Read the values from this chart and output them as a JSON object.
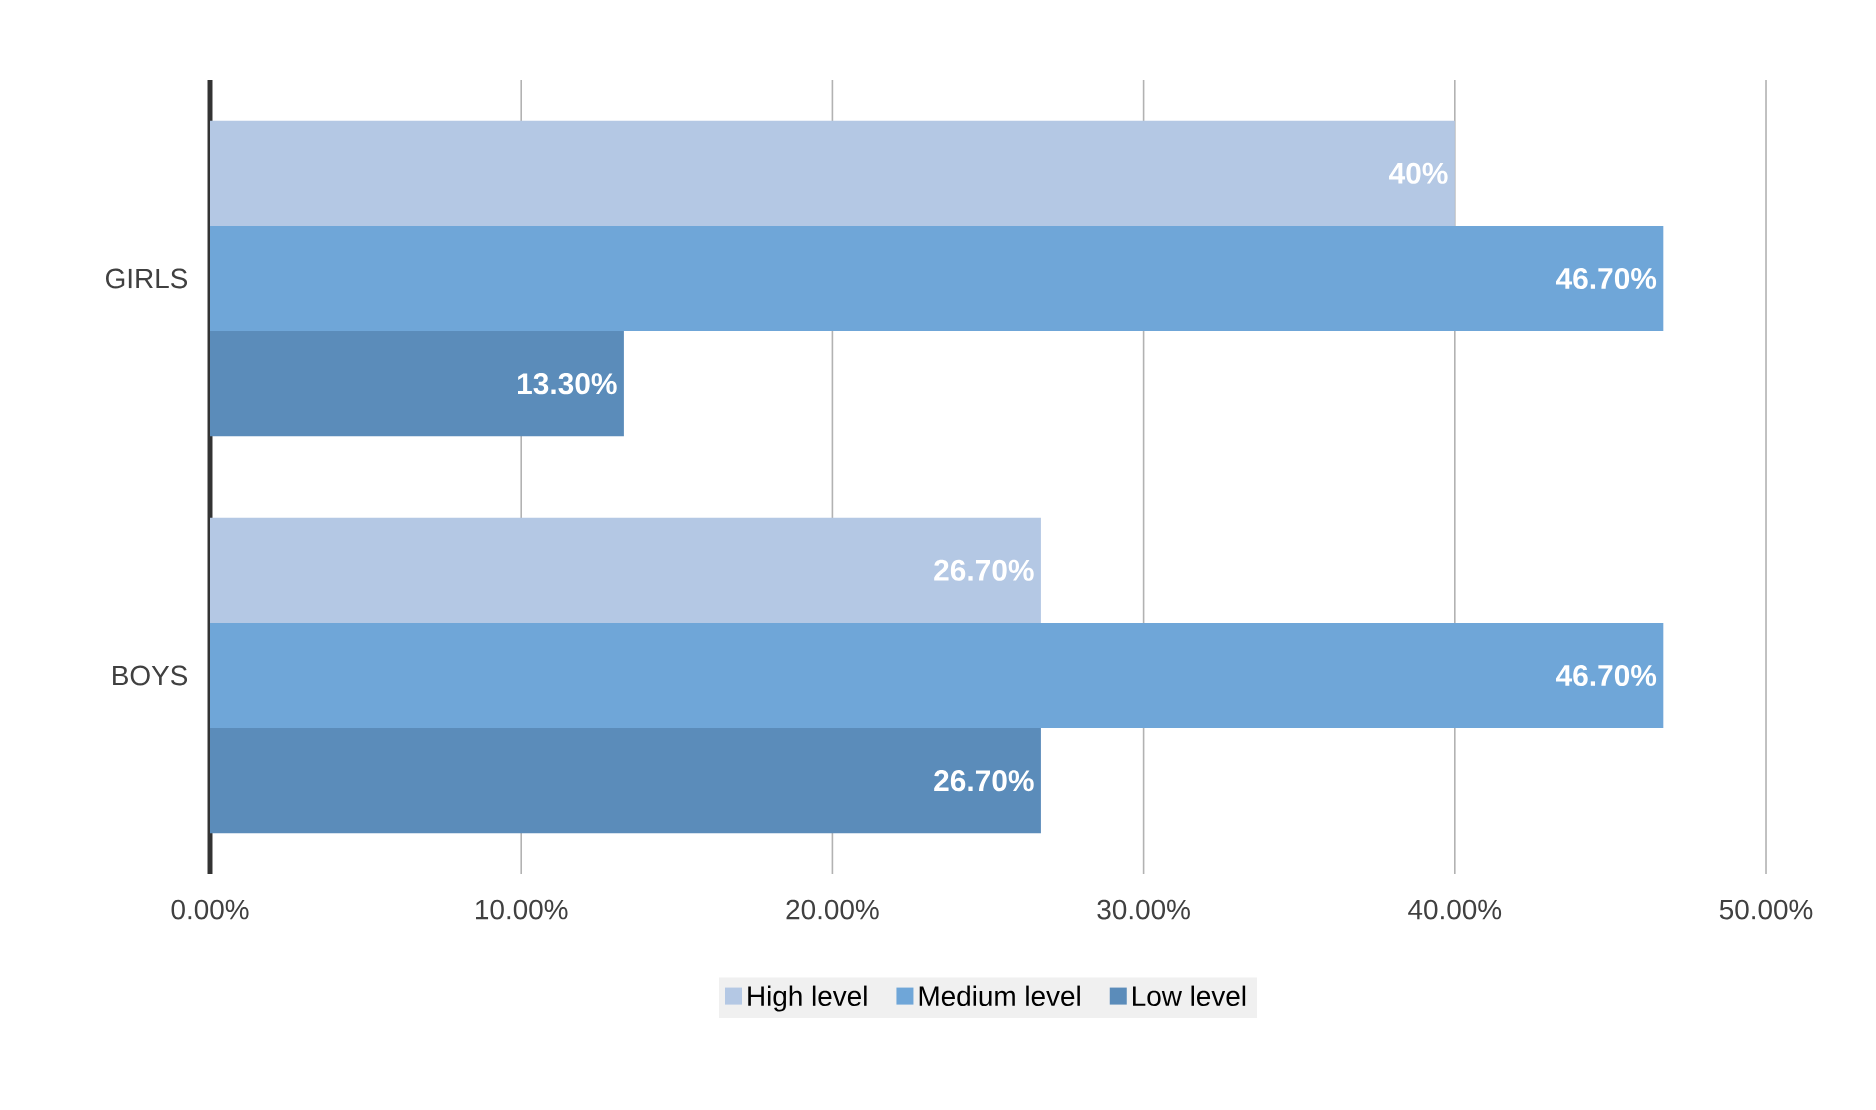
{
  "chart_data": {
    "type": "bar",
    "orientation": "horizontal",
    "categories": [
      "GIRLS",
      "BOYS"
    ],
    "series": [
      {
        "name": "High level",
        "color": "#b4c8e4",
        "values": [
          40,
          26.7
        ],
        "value_labels": [
          "40%",
          "26.70%"
        ]
      },
      {
        "name": "Medium level",
        "color": "#6fa6d8",
        "values": [
          46.7,
          46.7
        ],
        "value_labels": [
          "46.70%",
          "46.70%"
        ]
      },
      {
        "name": "Low level",
        "color": "#5b8cba",
        "values": [
          13.3,
          26.7
        ],
        "value_labels": [
          "13.30%",
          "26.70%"
        ]
      }
    ],
    "xlim": [
      0,
      50
    ],
    "xticks": [
      {
        "value": 0,
        "label": "0.00%"
      },
      {
        "value": 10,
        "label": "10.00%"
      },
      {
        "value": 20,
        "label": "20.00%"
      },
      {
        "value": 30,
        "label": "30.00%"
      },
      {
        "value": 40,
        "label": "40.00%"
      },
      {
        "value": 50,
        "label": "50.00%"
      }
    ],
    "grid": "x",
    "legend": "bottom"
  }
}
